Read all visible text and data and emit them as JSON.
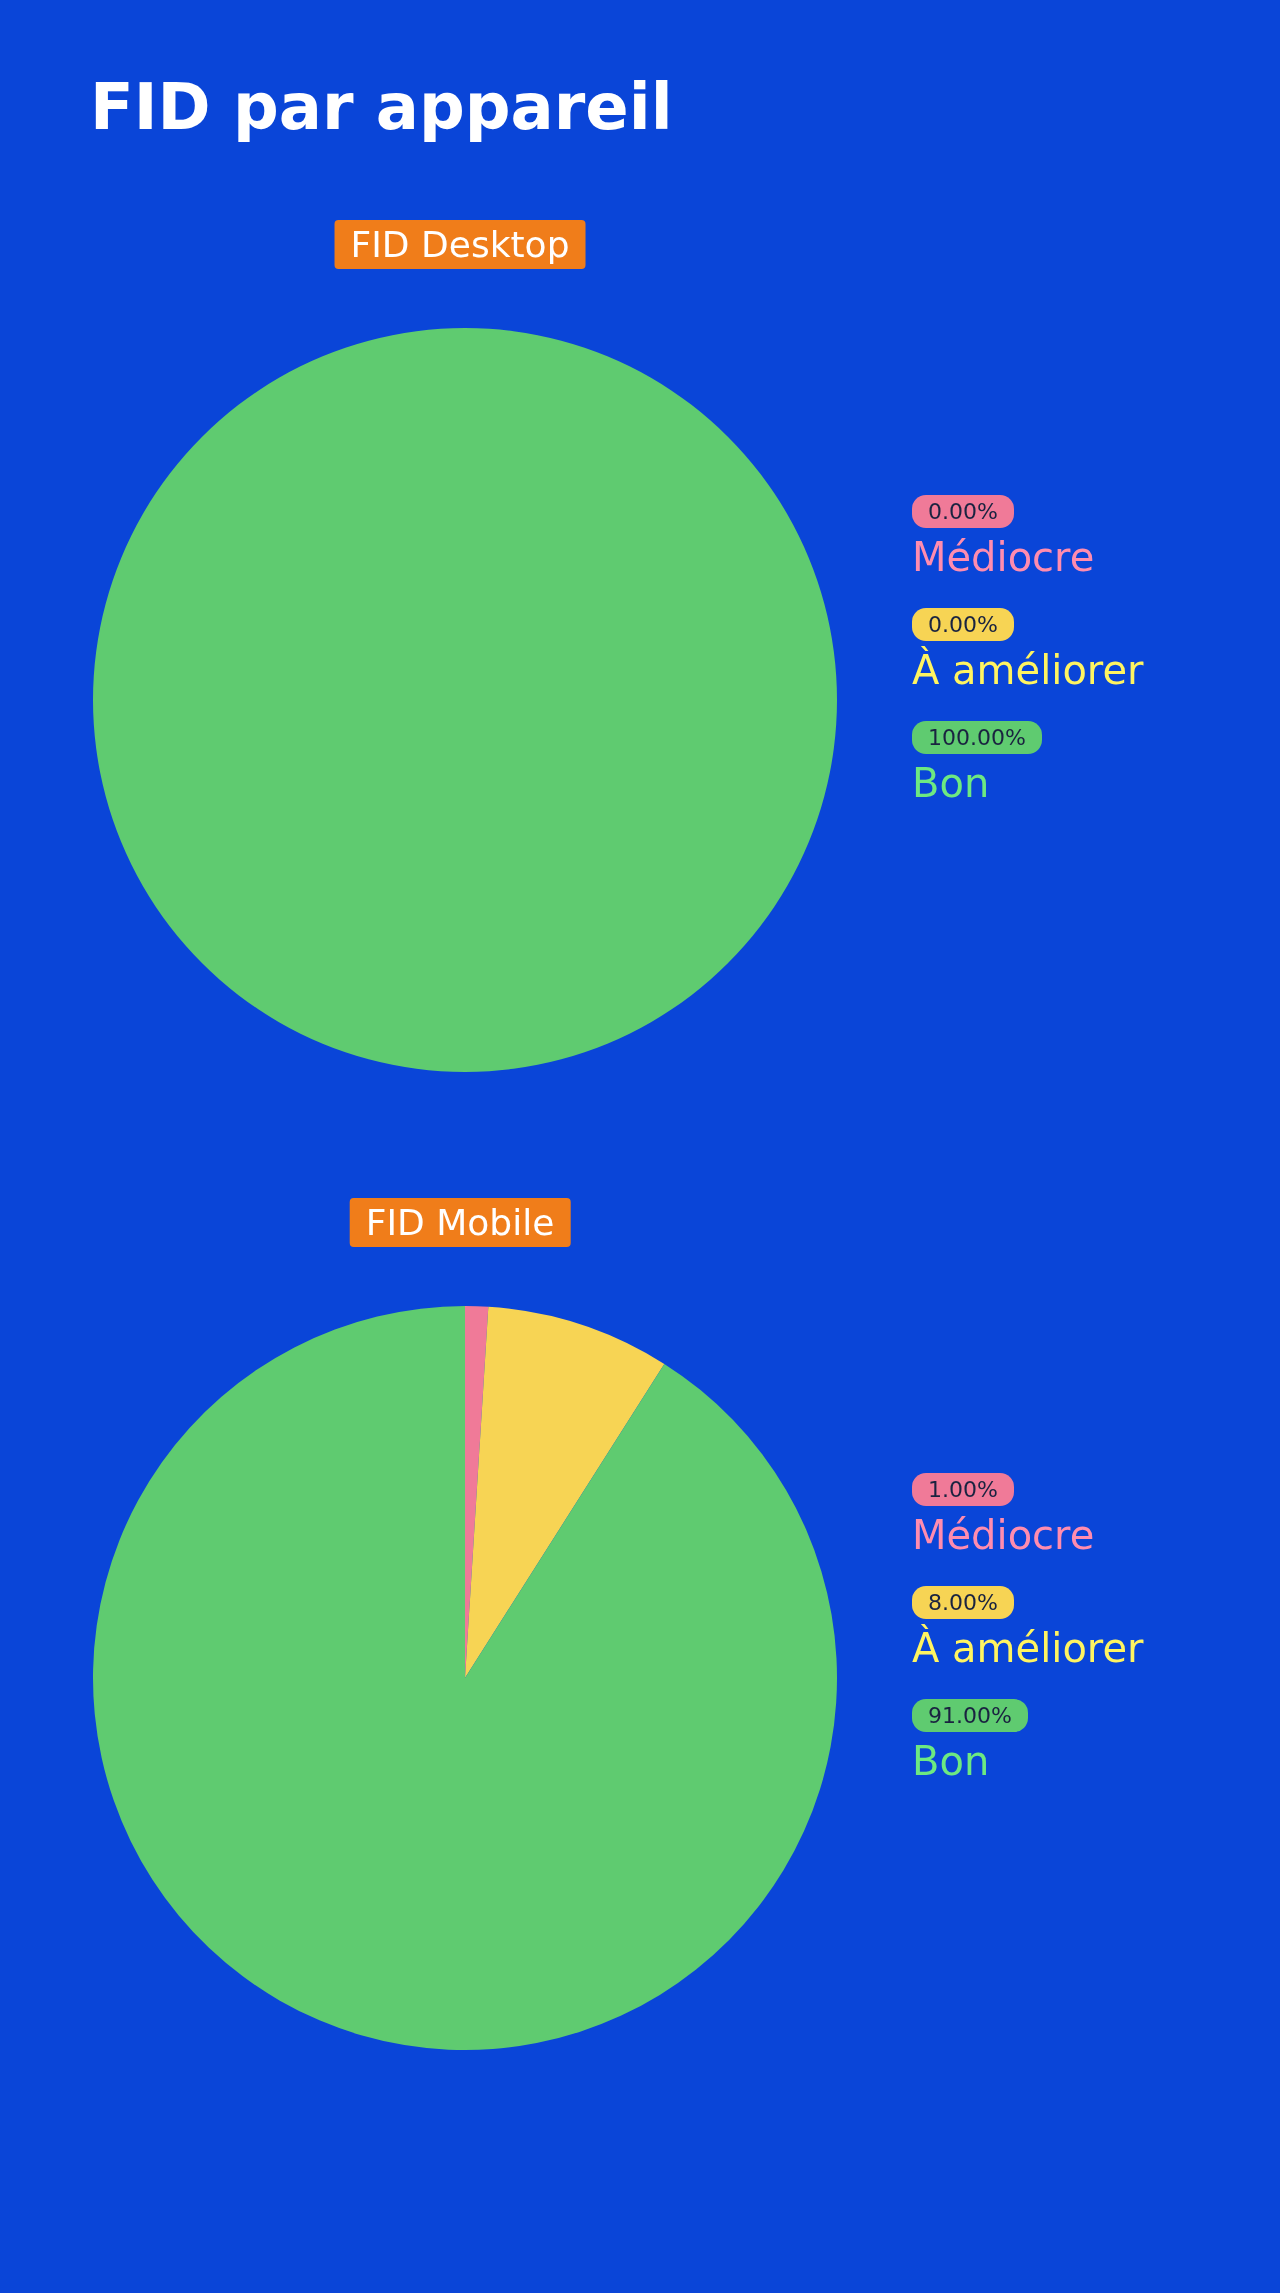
{
  "chart_data": [
    {
      "type": "pie",
      "title": "FID par appareil",
      "subtitle": "FID Desktop",
      "categories": [
        "Médiocre",
        "À améliorer",
        "Bon"
      ],
      "values": [
        0,
        0,
        100
      ],
      "value_labels": [
        "0.00%",
        "0.00%",
        "100.00%"
      ],
      "colors": [
        "#f07a98",
        "#f7d454",
        "#5fcb70"
      ],
      "legend": "right"
    },
    {
      "type": "pie",
      "subtitle": "FID Mobile",
      "categories": [
        "Médiocre",
        "À améliorer",
        "Bon"
      ],
      "values": [
        1,
        8,
        91
      ],
      "value_labels": [
        "1.00%",
        "8.00%",
        "91.00%"
      ],
      "colors": [
        "#f07a98",
        "#f7d454",
        "#5fcb70"
      ],
      "legend": "right"
    }
  ]
}
